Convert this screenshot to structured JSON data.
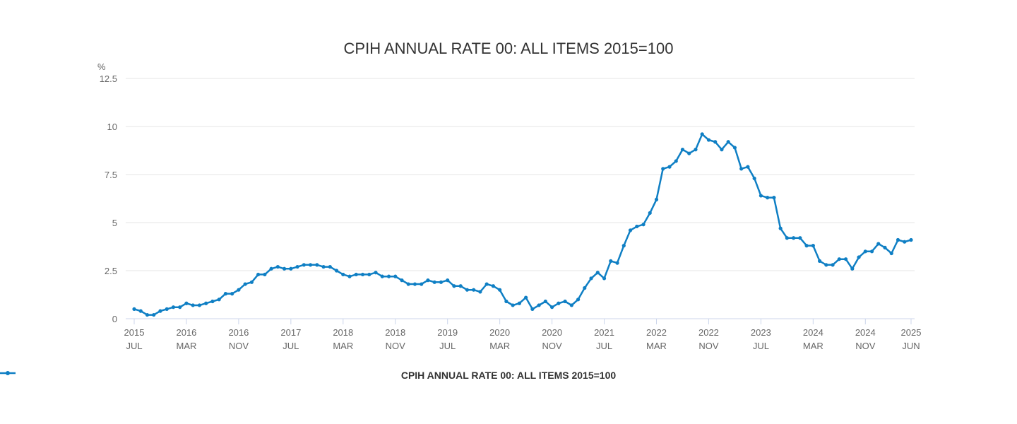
{
  "chart_data": {
    "type": "line",
    "title": "CPIH ANNUAL RATE 00: ALL ITEMS 2015=100",
    "ylabel": "%",
    "xlabel": "",
    "ylim": [
      0,
      12.5
    ],
    "yticks": [
      "0",
      "2.5",
      "5",
      "7.5",
      "10",
      "12.5"
    ],
    "xtick_labels": [
      {
        "year": "2015",
        "month": "JUL"
      },
      {
        "year": "2016",
        "month": "MAR"
      },
      {
        "year": "2016",
        "month": "NOV"
      },
      {
        "year": "2017",
        "month": "JUL"
      },
      {
        "year": "2018",
        "month": "MAR"
      },
      {
        "year": "2018",
        "month": "NOV"
      },
      {
        "year": "2019",
        "month": "JUL"
      },
      {
        "year": "2020",
        "month": "MAR"
      },
      {
        "year": "2020",
        "month": "NOV"
      },
      {
        "year": "2021",
        "month": "JUL"
      },
      {
        "year": "2022",
        "month": "MAR"
      },
      {
        "year": "2022",
        "month": "NOV"
      },
      {
        "year": "2023",
        "month": "JUL"
      },
      {
        "year": "2024",
        "month": "MAR"
      },
      {
        "year": "2024",
        "month": "NOV"
      },
      {
        "year": "2025",
        "month": "JUN"
      }
    ],
    "x_start": "2015-07",
    "x_end": "2025-06",
    "grid": true,
    "legend_position": "bottom-center",
    "series": [
      {
        "name": "CPIH ANNUAL RATE 00: ALL ITEMS 2015=100",
        "color": "#0f7fc4",
        "values": [
          0.5,
          0.4,
          0.2,
          0.2,
          0.4,
          0.5,
          0.6,
          0.6,
          0.8,
          0.7,
          0.7,
          0.8,
          0.9,
          1.0,
          1.3,
          1.3,
          1.5,
          1.8,
          1.9,
          2.3,
          2.3,
          2.6,
          2.7,
          2.6,
          2.6,
          2.7,
          2.8,
          2.8,
          2.8,
          2.7,
          2.7,
          2.5,
          2.3,
          2.2,
          2.3,
          2.3,
          2.3,
          2.4,
          2.2,
          2.2,
          2.2,
          2.0,
          1.8,
          1.8,
          1.8,
          2.0,
          1.9,
          1.9,
          2.0,
          1.7,
          1.7,
          1.5,
          1.5,
          1.4,
          1.8,
          1.7,
          1.5,
          0.9,
          0.7,
          0.8,
          1.1,
          0.5,
          0.7,
          0.9,
          0.6,
          0.8,
          0.9,
          0.7,
          1.0,
          1.6,
          2.1,
          2.4,
          2.1,
          3.0,
          2.9,
          3.8,
          4.6,
          4.8,
          4.9,
          5.5,
          6.2,
          7.8,
          7.9,
          8.2,
          8.8,
          8.6,
          8.8,
          9.6,
          9.3,
          9.2,
          8.8,
          9.2,
          8.9,
          7.8,
          7.9,
          7.3,
          6.4,
          6.3,
          6.3,
          4.7,
          4.2,
          4.2,
          4.2,
          3.8,
          3.8,
          3.0,
          2.8,
          2.8,
          3.1,
          3.1,
          2.6,
          3.2,
          3.5,
          3.5,
          3.9,
          3.7,
          3.4,
          4.1,
          4.0,
          4.1
        ]
      }
    ]
  }
}
